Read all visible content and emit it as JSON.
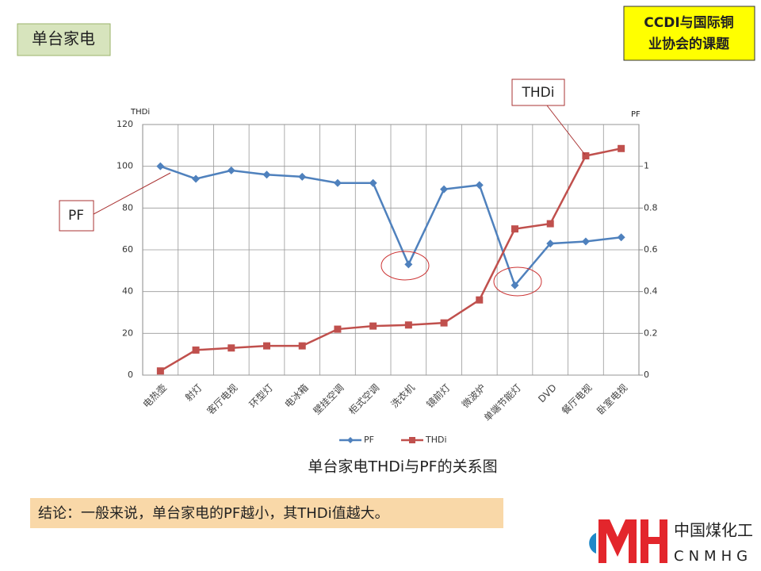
{
  "slide": {
    "title": "单台家电",
    "tag_lines": [
      "CCDI与国际铜",
      "业协会的课题"
    ],
    "conclusion": "结论：一般来说，单台家电的PF越小，其THDi值越大。",
    "logo": {
      "cn": "中国煤化工",
      "en": "CNMHG"
    }
  },
  "chart_data": {
    "type": "line",
    "title": "单台家电THDi与PF的关系图",
    "ylabel": "THDi",
    "y2label": "PF",
    "categories": [
      "电热壶",
      "射灯",
      "客厅电视",
      "环型灯",
      "电冰箱",
      "壁挂空调",
      "柜式空调",
      "洗衣机",
      "镜前灯",
      "微波炉",
      "单端节能灯",
      "DVD",
      "餐厅电视",
      "卧室电视"
    ],
    "series": [
      {
        "name": "PF",
        "color": "#4f81bd",
        "axis": "y2",
        "values": [
          1.0,
          0.94,
          0.98,
          0.96,
          0.95,
          0.92,
          0.92,
          0.53,
          0.89,
          0.91,
          0.43,
          0.63,
          0.64,
          0.66
        ]
      },
      {
        "name": "THDi",
        "color": "#c0504d",
        "values": [
          2,
          12,
          13,
          14,
          14,
          22,
          23.5,
          24,
          25,
          36,
          70,
          72.5,
          105,
          108.5
        ]
      }
    ],
    "ylim": [
      0,
      120
    ],
    "yticks": [
      0,
      20,
      40,
      60,
      80,
      100,
      120
    ],
    "y2lim": [
      0,
      1.2
    ],
    "y2ticks": [
      0,
      0.2,
      0.4,
      0.6,
      0.8,
      1
    ],
    "grid": true,
    "legend": "bottom",
    "annotations": [
      "PF",
      "THDi"
    ]
  }
}
